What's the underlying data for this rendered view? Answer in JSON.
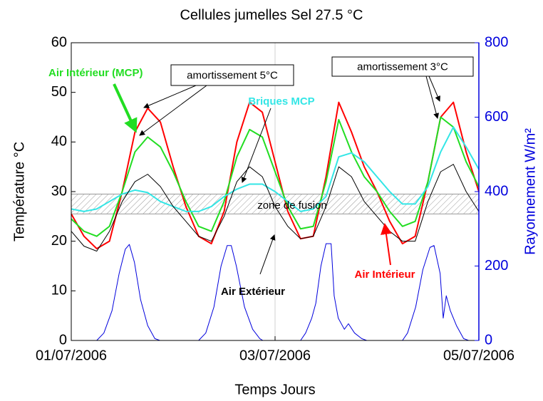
{
  "chart_data": {
    "type": "line",
    "title": "Cellules jumelles Sel 27.5 °C",
    "xlabel": "Temps Jours",
    "ylabel": "Température °C",
    "y2label": "Rayonnement W/m²",
    "xlim": [
      0,
      4
    ],
    "xticks": [
      {
        "value": 0,
        "label": "01/07/2006"
      },
      {
        "value": 2,
        "label": "03/07/2006"
      },
      {
        "value": 4,
        "label": "05/07/2006"
      }
    ],
    "ylim": [
      0,
      60
    ],
    "yticks": [
      0,
      10,
      20,
      30,
      40,
      50,
      60
    ],
    "y2lim": [
      0,
      800
    ],
    "y2ticks": [
      0,
      200,
      400,
      600,
      800
    ],
    "grid": true,
    "x": [
      0,
      0.125,
      0.25,
      0.375,
      0.5,
      0.625,
      0.75,
      0.875,
      1,
      1.125,
      1.25,
      1.375,
      1.5,
      1.625,
      1.75,
      1.875,
      2,
      2.125,
      2.25,
      2.375,
      2.5,
      2.625,
      2.75,
      2.875,
      3,
      3.125,
      3.25,
      3.375,
      3.5,
      3.625,
      3.75,
      3.875,
      4
    ],
    "series": [
      {
        "name": "Air Intérieur",
        "color": "#ff0000",
        "values": [
          25.5,
          21,
          18.5,
          20,
          30,
          42,
          46.8,
          44,
          35,
          27,
          21,
          19.5,
          26,
          40,
          48,
          46,
          36,
          26,
          20.5,
          21,
          33,
          48,
          42,
          35,
          30,
          24,
          19.5,
          21,
          32,
          45,
          48,
          38,
          30
        ]
      },
      {
        "name": "Air Intérieur (MCP)",
        "color": "#22dd22",
        "values": [
          24.5,
          22,
          21,
          23,
          30,
          38,
          41,
          39,
          34,
          28,
          23,
          22,
          28,
          37,
          42.5,
          41,
          34,
          27,
          22.5,
          23,
          32,
          44.5,
          38,
          33,
          30,
          26,
          23,
          24,
          32,
          45,
          43,
          36,
          31
        ]
      },
      {
        "name": "Briques MCP",
        "color": "#33e6e6",
        "values": [
          26.5,
          26,
          26.5,
          28,
          29.5,
          30.3,
          29.8,
          28,
          27,
          26,
          26,
          27,
          29,
          30.5,
          31.5,
          31.5,
          30,
          28,
          26,
          26.5,
          29,
          37,
          37.8,
          36,
          33,
          30,
          27.5,
          27.5,
          31,
          38,
          43,
          39,
          34.5
        ]
      },
      {
        "name": "Air Extérieur",
        "color": "#000000",
        "values": [
          22,
          19,
          18,
          22,
          28,
          32,
          33.5,
          31,
          27,
          24,
          21,
          20,
          25,
          32,
          35,
          33,
          27,
          23,
          20.5,
          21,
          27,
          35,
          33,
          28,
          25,
          22,
          20,
          20,
          28,
          34,
          35.5,
          30,
          26
        ]
      },
      {
        "color": "#0000dd",
        "axis": "y2",
        "x": [
          0,
          0.25,
          0.32,
          0.4,
          0.47,
          0.53,
          0.57,
          0.62,
          0.68,
          0.75,
          0.82,
          0.87,
          1.25,
          1.32,
          1.4,
          1.47,
          1.53,
          1.57,
          1.62,
          1.7,
          1.78,
          1.85,
          1.88,
          2.25,
          2.3,
          2.36,
          2.4,
          2.45,
          2.5,
          2.55,
          2.58,
          2.62,
          2.68,
          2.72,
          2.78,
          2.85,
          2.9,
          3.25,
          3.3,
          3.38,
          3.45,
          3.52,
          3.56,
          3.62,
          3.65,
          3.68,
          3.72,
          3.78,
          3.85,
          3.9,
          4
        ],
        "values": [
          0,
          0,
          20,
          80,
          180,
          245,
          258,
          210,
          110,
          40,
          5,
          0,
          0,
          20,
          90,
          200,
          255,
          255,
          200,
          90,
          30,
          5,
          0,
          0,
          20,
          60,
          100,
          200,
          260,
          260,
          120,
          60,
          30,
          45,
          20,
          5,
          0,
          0,
          20,
          90,
          190,
          250,
          255,
          180,
          60,
          120,
          80,
          40,
          5,
          0,
          0
        ]
      }
    ],
    "band": {
      "label": "zone de fusion",
      "ymin": 25.5,
      "ymax": 29.5
    },
    "annotations": [
      "amortissement 5°C",
      "amortissement 3°C"
    ]
  }
}
